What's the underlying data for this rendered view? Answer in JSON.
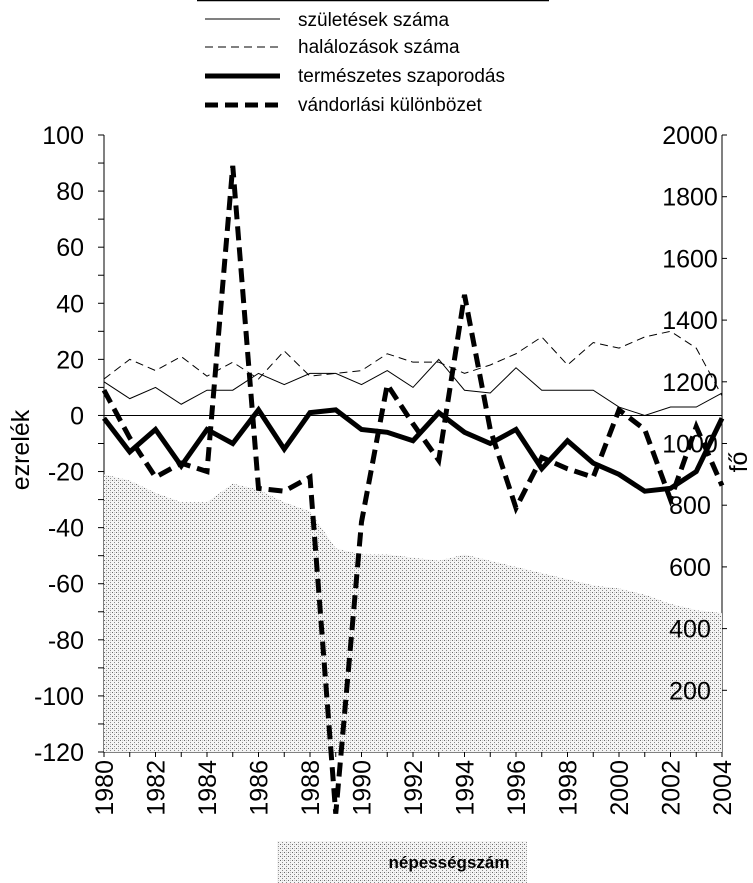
{
  "chart_data": {
    "type": "line",
    "x": [
      1980,
      1981,
      1982,
      1983,
      1984,
      1985,
      1986,
      1987,
      1988,
      1989,
      1990,
      1991,
      1992,
      1993,
      1994,
      1995,
      1996,
      1997,
      1998,
      1999,
      2000,
      2001,
      2002,
      2003,
      2004
    ],
    "x_tick_labels": [
      "1980",
      "1982",
      "1984",
      "1986",
      "1988",
      "1990",
      "1992",
      "1994",
      "1996",
      "1998",
      "2000",
      "2002",
      "2004"
    ],
    "y_left": {
      "label": "ezrelék",
      "range": [
        -120,
        100
      ],
      "tick_labels": [
        "100",
        "80",
        "60",
        "40",
        "20",
        "0",
        "-20",
        "-40",
        "-60",
        "-80",
        "-100",
        "-120"
      ]
    },
    "y_right": {
      "label": "fő",
      "range": [
        0,
        2000
      ],
      "tick_labels": [
        "2000",
        "1800",
        "1600",
        "1400",
        "1200",
        "1000",
        "800",
        "600",
        "400",
        "200"
      ]
    },
    "series": [
      {
        "name": "születések száma",
        "axis": "left",
        "style": "thin-solid",
        "values": [
          12,
          6,
          10,
          4,
          9,
          9,
          15,
          11,
          15,
          15,
          11,
          16,
          10,
          20,
          9,
          8,
          17,
          9,
          9,
          9,
          3,
          0,
          3,
          3,
          8
        ]
      },
      {
        "name": "halálozások száma",
        "axis": "left",
        "style": "thin-dashed",
        "values": [
          13,
          20,
          16,
          21,
          14,
          19,
          13,
          23,
          14,
          15,
          16,
          22,
          19,
          19,
          15,
          18,
          22,
          28,
          18,
          26,
          24,
          28,
          30,
          24,
          7
        ]
      },
      {
        "name": "természetes szaporodás",
        "axis": "left",
        "style": "thick-solid",
        "values": [
          -1,
          -13,
          -5,
          -18,
          -5,
          -10,
          2,
          -12,
          1,
          2,
          -5,
          -6,
          -9,
          1,
          -6,
          -10,
          -5,
          -19,
          -9,
          -17,
          -21,
          -27,
          -26,
          -20,
          -1
        ]
      },
      {
        "name": "vándorlási különbözet",
        "axis": "left",
        "style": "thick-dashed",
        "values": [
          9,
          -8,
          -22,
          -17,
          -20,
          89,
          -26,
          -27,
          -22,
          -142,
          -38,
          11,
          -3,
          -16,
          43,
          -5,
          -33,
          -15,
          -19,
          -22,
          2,
          -5,
          -30,
          -4,
          -25
        ]
      },
      {
        "name": "népességszám",
        "axis": "right",
        "style": "dotted-area",
        "values": [
          900,
          880,
          840,
          810,
          810,
          870,
          850,
          810,
          780,
          660,
          640,
          640,
          630,
          620,
          640,
          620,
          600,
          580,
          560,
          540,
          530,
          510,
          480,
          460,
          450
        ]
      }
    ],
    "legend_position": "top-center",
    "grid": false
  }
}
